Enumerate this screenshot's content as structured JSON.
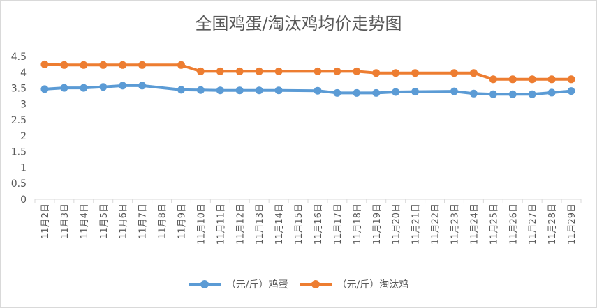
{
  "chart_data": {
    "type": "line",
    "title": "全国鸡蛋/淘汰鸡均价走势图",
    "xlabel": "",
    "ylabel": "",
    "categories": [
      "11月2日",
      "11月3日",
      "11月4日",
      "11月5日",
      "11月6日",
      "11月7日",
      "11月8日",
      "11月9日",
      "11月10日",
      "11月11日",
      "11月12日",
      "11月13日",
      "11月14日",
      "11月15日",
      "11月16日",
      "11月17日",
      "11月18日",
      "11月19日",
      "11月20日",
      "11月21日",
      "11月22日",
      "11月23日",
      "11月24日",
      "11月25日",
      "11月26日",
      "11月27日",
      "11月28日",
      "11月29日"
    ],
    "yticks": [
      "0",
      "0.5",
      "1",
      "1.5",
      "2",
      "2.5",
      "3",
      "3.5",
      "4",
      "4.5"
    ],
    "ylim": [
      0,
      4.5
    ],
    "grid": false,
    "legend_position": "bottom",
    "series": [
      {
        "name": "（元/斤）鸡蛋",
        "color": "#5b9bd5",
        "values": [
          3.47,
          3.51,
          3.51,
          3.54,
          3.58,
          3.58,
          null,
          3.45,
          3.44,
          3.43,
          3.43,
          3.43,
          3.43,
          null,
          3.42,
          3.35,
          3.35,
          3.35,
          3.38,
          3.39,
          null,
          3.4,
          3.33,
          3.31,
          3.31,
          3.31,
          3.36,
          3.41
        ]
      },
      {
        "name": "（元/斤）淘汰鸡",
        "color": "#ed7d31",
        "values": [
          4.25,
          4.23,
          4.23,
          4.23,
          4.23,
          4.23,
          null,
          4.23,
          4.03,
          4.03,
          4.03,
          4.03,
          4.03,
          null,
          4.03,
          4.03,
          4.03,
          3.98,
          3.98,
          3.98,
          null,
          3.98,
          3.98,
          3.78,
          3.78,
          3.78,
          3.78,
          3.78
        ]
      }
    ]
  }
}
